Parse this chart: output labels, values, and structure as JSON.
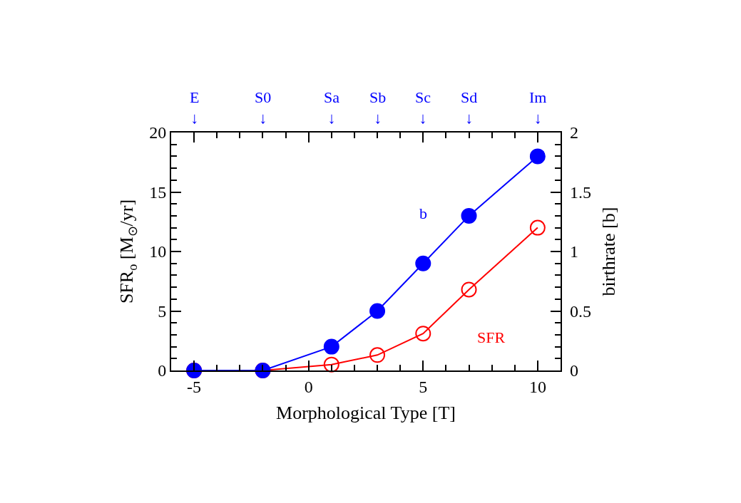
{
  "chart_data": {
    "type": "line",
    "xlabel": "Morphological Type [T]",
    "ylabel": "SFR$_{o}$ [M$_{⊙}$/yr]",
    "y2label": "birthrate [b]",
    "x": [
      -5,
      -2,
      1,
      3,
      5,
      7,
      10
    ],
    "series": [
      {
        "name": "SFR",
        "color": "#ff0000",
        "values": [
          0,
          0,
          0.5,
          1.3,
          3.1,
          6.8,
          12.0
        ],
        "marker": "circle-open"
      },
      {
        "name": "b",
        "color": "#0000ff",
        "values": [
          0,
          0,
          0.2,
          0.5,
          0.9,
          1.3,
          1.8
        ],
        "axis": "y2",
        "marker": "circle"
      }
    ],
    "xlim": [
      -6,
      11
    ],
    "xticks": [
      -5,
      0,
      5,
      10
    ],
    "ylim": [
      0,
      20
    ],
    "yticks": [
      0,
      5,
      10,
      15,
      20
    ],
    "y2lim": [
      0,
      2
    ],
    "y2ticks": [
      0,
      {
        "value": 0.5,
        "label": "0.5"
      },
      1,
      {
        "value": 1.5,
        "label": "1.5"
      },
      2
    ],
    "annotations": [
      {
        "text": "E\n↓",
        "x": -5
      },
      {
        "text": "S0\n↓",
        "x": -2
      },
      {
        "text": "Sa\n↓",
        "x": 1
      },
      {
        "text": "Sb\n↓",
        "x": 3
      },
      {
        "text": "Sc\n↓",
        "x": 5
      },
      {
        "text": "Sd\n↓",
        "x": 7
      },
      {
        "text": "Im\n↓",
        "x": 10
      }
    ],
    "line_style": "solid",
    "legend": false
  }
}
